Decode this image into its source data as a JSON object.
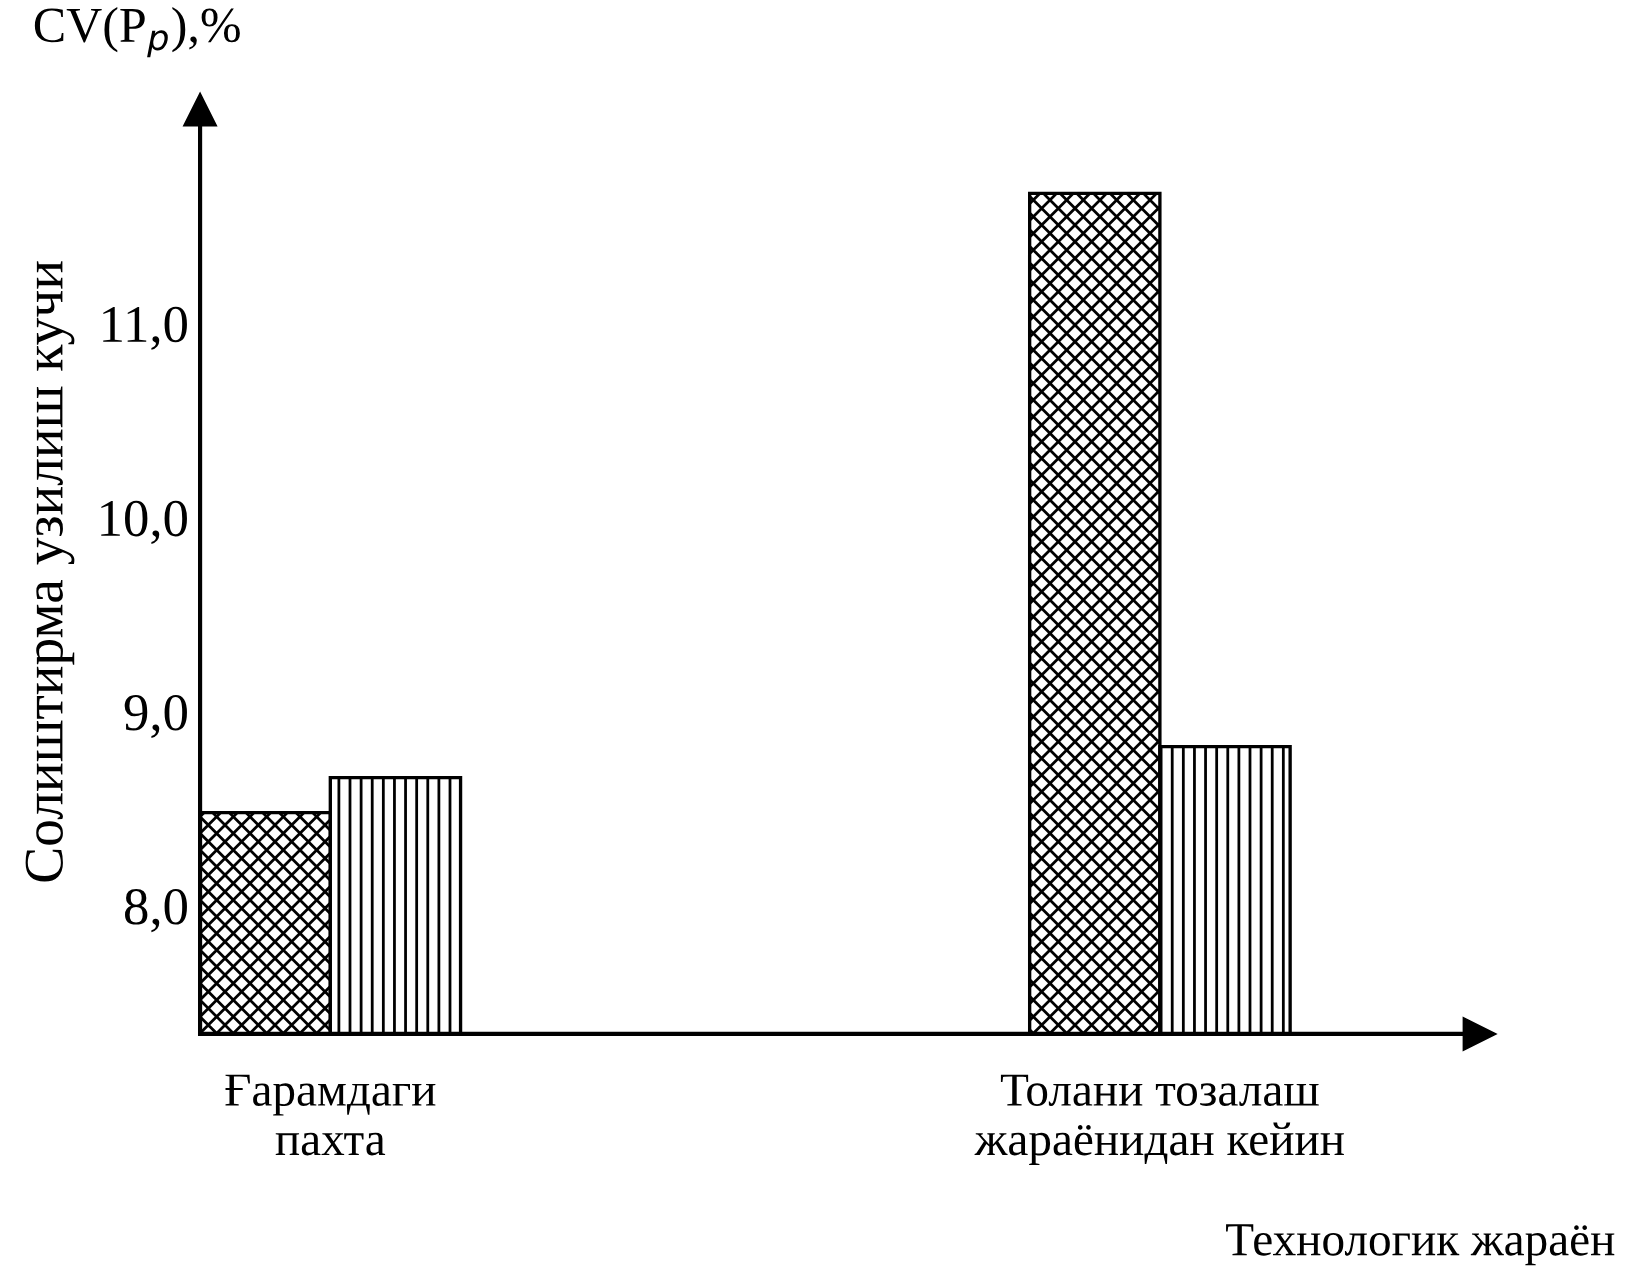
{
  "chart_data": {
    "type": "bar",
    "title": "CV(P$_{p}$),%",
    "ylabel": "Солиштирма узилиш кучи",
    "xlabel": "Технологик жараён",
    "categories": [
      "Ғарамдаги\nпахта",
      "Толани тозалаш\nжараёнидан кейин"
    ],
    "series": [
      {
        "color": "#000000",
        "values": [
          8.48,
          11.67
        ]
      },
      {
        "color": "#000000",
        "values": [
          8.66,
          8.82
        ]
      }
    ],
    "ylim": [
      7.34,
      12.1
    ],
    "yticks": [
      {
        "value": 8,
        "label": "8,0"
      },
      {
        "value": 9,
        "label": "9,0"
      },
      {
        "value": 10,
        "label": "10,0"
      },
      {
        "value": 11,
        "label": "11,0"
      }
    ],
    "grid": false,
    "legend": false
  }
}
